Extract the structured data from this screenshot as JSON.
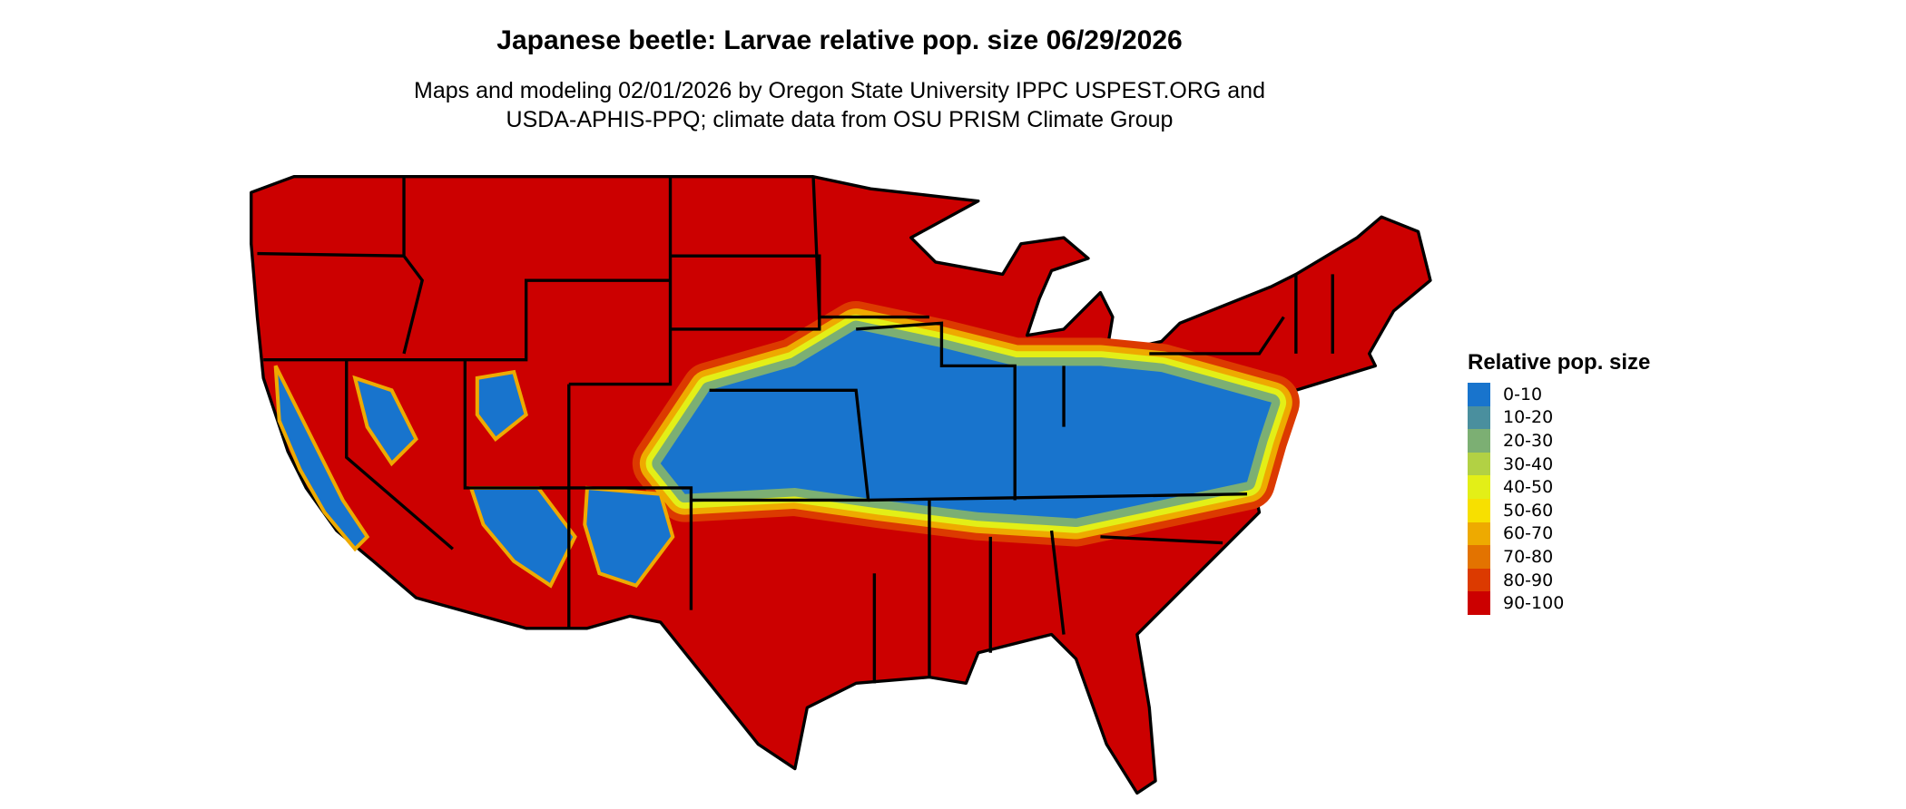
{
  "title": "Japanese beetle: Larvae relative pop. size 06/29/2026",
  "subtitle_lines": [
    "Maps and modeling 02/01/2026 by Oregon State University IPPC USPEST.ORG and",
    "USDA-APHIS-PPQ; climate data from OSU PRISM Climate Group"
  ],
  "map": {
    "region": "Contiguous United States",
    "dominant_class": "90-100",
    "low_band_class": "0-10"
  },
  "legend": {
    "title": "Relative pop. size",
    "items": [
      {
        "label": "0-10",
        "color": "#1874CD"
      },
      {
        "label": "10-20",
        "color": "#4A8F9E"
      },
      {
        "label": "20-30",
        "color": "#7CAF73"
      },
      {
        "label": "30-40",
        "color": "#B2D144"
      },
      {
        "label": "40-50",
        "color": "#E3EF17"
      },
      {
        "label": "50-60",
        "color": "#F7E000"
      },
      {
        "label": "60-70",
        "color": "#EEAA00"
      },
      {
        "label": "70-80",
        "color": "#E37300"
      },
      {
        "label": "80-90",
        "color": "#DC3A00"
      },
      {
        "label": "90-100",
        "color": "#CC0000"
      }
    ]
  }
}
